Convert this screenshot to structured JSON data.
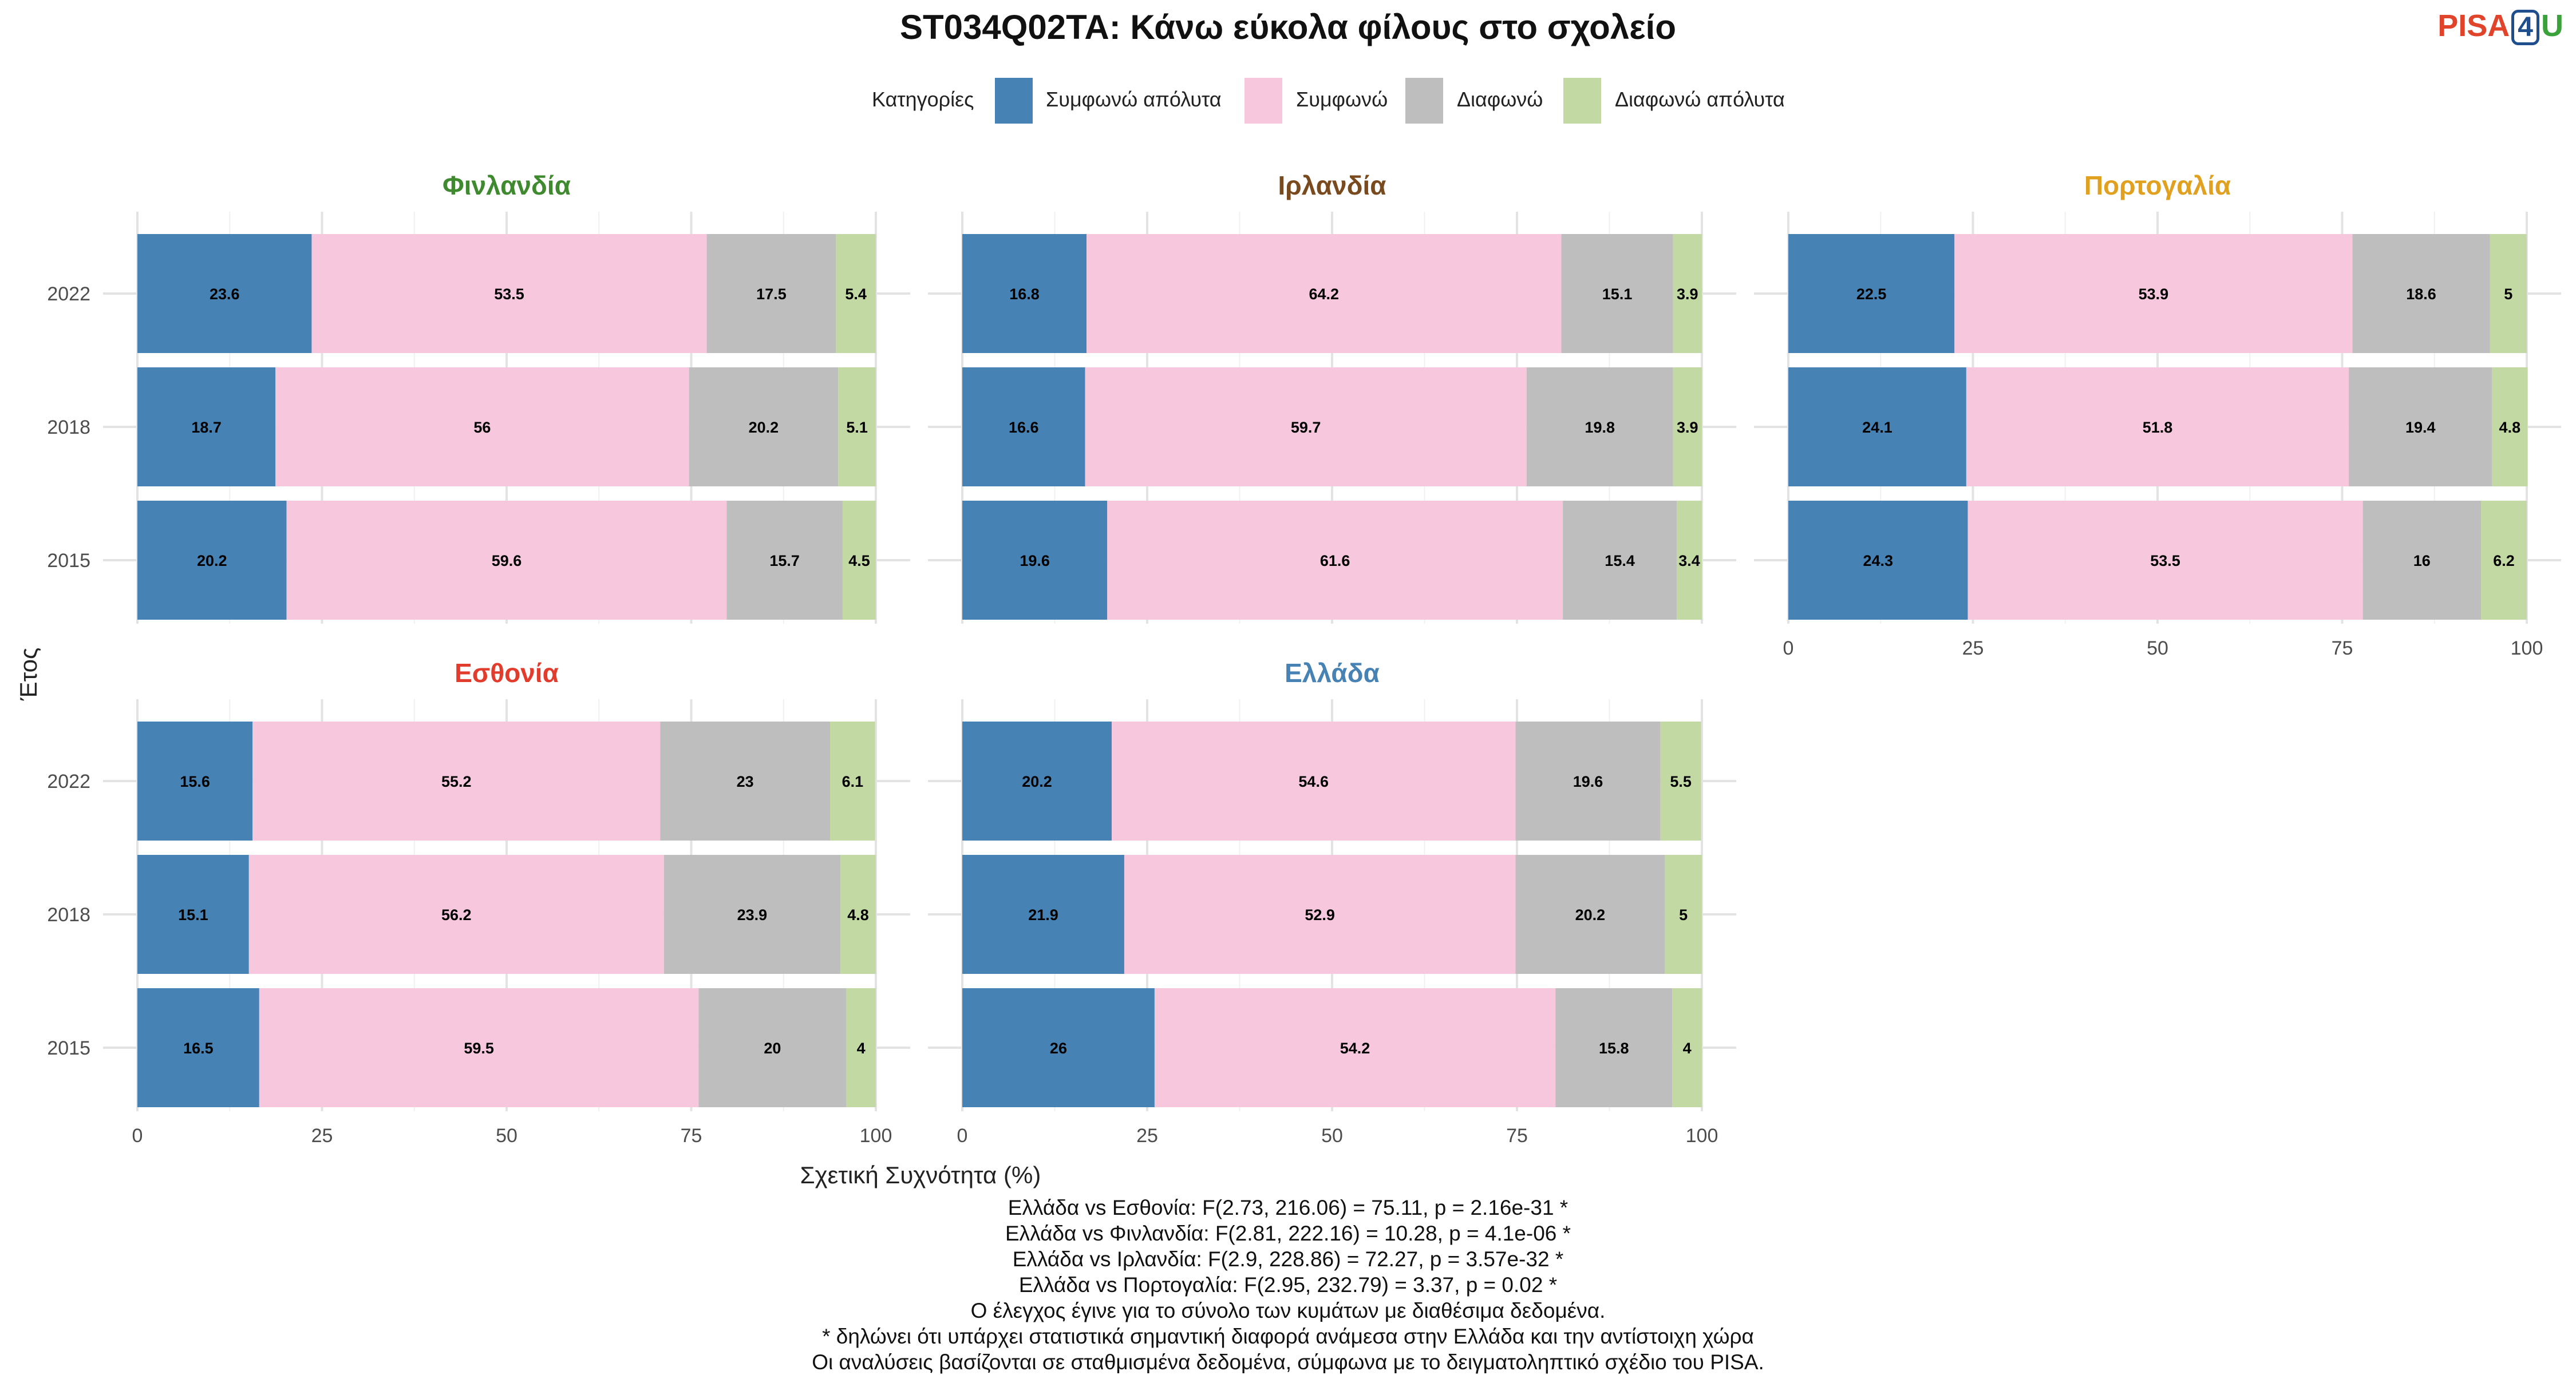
{
  "logo": {
    "part1": "PISA",
    "part2": "4",
    "part3": "U"
  },
  "chart_data": {
    "type": "bar",
    "orientation": "horizontal-stacked",
    "title": "ST034Q02TA: Κάνω εύκολα φίλους στο σχολείο",
    "xlabel": "Σχετική Συχνότητα (%)",
    "ylabel": "Έτος",
    "xlim": [
      0,
      100
    ],
    "xticks": [
      "0",
      "25",
      "50",
      "75",
      "100"
    ],
    "years": [
      "2022",
      "2018",
      "2015"
    ],
    "legend": {
      "title": "Κατηγορίες",
      "placement": "top",
      "items": [
        {
          "label": "Συμφωνώ απόλυτα",
          "color": "#4682b4"
        },
        {
          "label": "Συμφωνώ",
          "color": "#f7c8dd"
        },
        {
          "label": "Διαφωνώ",
          "color": "#bebebe"
        },
        {
          "label": "Διαφωνώ απόλυτα",
          "color": "#c2d9a3"
        }
      ]
    },
    "panels": [
      {
        "name": "Φινλανδία",
        "color": "#3f8a2f",
        "values": {
          "2022": [
            23.6,
            53.5,
            17.5,
            5.4
          ],
          "2018": [
            18.7,
            56,
            20.2,
            5.1
          ],
          "2015": [
            20.2,
            59.6,
            15.7,
            4.5
          ]
        }
      },
      {
        "name": "Ιρλανδία",
        "color": "#7a4a1f",
        "values": {
          "2022": [
            16.8,
            64.2,
            15.1,
            3.9
          ],
          "2018": [
            16.6,
            59.7,
            19.8,
            3.9
          ],
          "2015": [
            19.6,
            61.6,
            15.4,
            3.4
          ]
        }
      },
      {
        "name": "Πορτογαλία",
        "color": "#e0a020",
        "values": {
          "2022": [
            22.5,
            53.9,
            18.6,
            5
          ],
          "2018": [
            24.1,
            51.8,
            19.4,
            4.8
          ],
          "2015": [
            24.3,
            53.5,
            16,
            6.2
          ]
        }
      },
      {
        "name": "Εσθονία",
        "color": "#e23c2c",
        "values": {
          "2022": [
            15.6,
            55.2,
            23,
            6.1
          ],
          "2018": [
            15.1,
            56.2,
            23.9,
            4.8
          ],
          "2015": [
            16.5,
            59.5,
            20,
            4
          ]
        }
      },
      {
        "name": "Ελλάδα",
        "color": "#4682b4",
        "values": {
          "2022": [
            20.2,
            54.6,
            19.6,
            5.5
          ],
          "2018": [
            21.9,
            52.9,
            20.2,
            5
          ],
          "2015": [
            26,
            54.2,
            15.8,
            4
          ]
        }
      }
    ]
  },
  "notes": [
    "Ελλάδα vs Εσθονία: F(2.73, 216.06) = 75.11, p = 2.16e-31 *",
    "Ελλάδα vs Φινλανδία: F(2.81, 222.16) = 10.28, p = 4.1e-06 *",
    "Ελλάδα vs Ιρλανδία: F(2.9, 228.86) = 72.27, p = 3.57e-32 *",
    "Ελλάδα vs Πορτογαλία: F(2.95, 232.79) = 3.37, p = 0.02 *",
    "Ο έλεγχος έγινε για το σύνολο των κυμάτων με διαθέσιμα δεδομένα.",
    "* δηλώνει ότι υπάρχει στατιστικά σημαντική διαφορά ανάμεσα στην Ελλάδα και την αντίστοιχη χώρα",
    "Οι αναλύσεις βασίζονται σε σταθμισμένα δεδομένα, σύμφωνα με το δειγματοληπτικό σχέδιο του PISA."
  ]
}
